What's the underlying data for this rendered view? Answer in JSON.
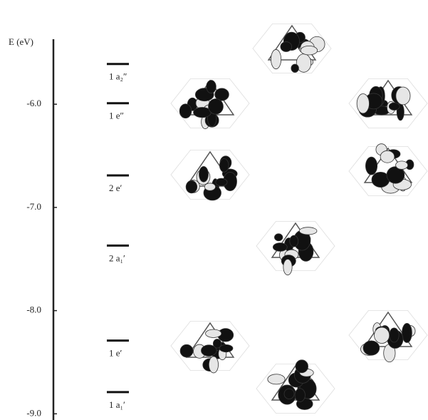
{
  "chart_data": {
    "type": "levels",
    "y_label": "E (eV)",
    "categories": [
      "1 a₂″",
      "1 e″",
      "2 e′",
      "2 a₁′",
      "1 e′",
      "1 a₁′"
    ],
    "values": [
      -5.61,
      -5.99,
      -6.69,
      -7.37,
      -8.29,
      -8.79
    ],
    "color": "#111111",
    "ylim": [
      -9.06,
      -5.37
    ],
    "yticks": [
      {
        "value": -6,
        "label": "-6.0"
      },
      {
        "value": -7,
        "label": "-7.0"
      },
      {
        "value": -8,
        "label": "-8.0"
      },
      {
        "value": -9,
        "label": "-9.0"
      }
    ]
  }
}
